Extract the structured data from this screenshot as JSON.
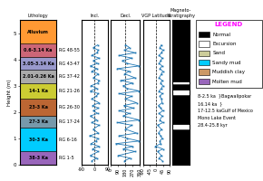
{
  "chart_data": [
    {
      "type": "column",
      "title": "Lithology",
      "y_label": "Height (m)",
      "ylim": [
        0,
        5.5
      ],
      "yticks": [
        0,
        1,
        2,
        3,
        4,
        5
      ],
      "tick_labels": "y",
      "intervals": [
        {
          "bottom": 0.0,
          "top": 0.5,
          "color": "#9966BB",
          "label": "38-3 Ka",
          "sample": "RG 1-5"
        },
        {
          "bottom": 0.5,
          "top": 1.4,
          "color": "#00CCFF",
          "label": "30-3 Ka",
          "sample": "RG 6-16"
        },
        {
          "bottom": 1.4,
          "top": 1.85,
          "color": "#7799AA",
          "label": "27-3 Ka",
          "sample": "RG 17-24"
        },
        {
          "bottom": 1.85,
          "top": 2.5,
          "color": "#BB6633",
          "label": "23-3 Ka",
          "sample": "RG 26-30"
        },
        {
          "bottom": 2.5,
          "top": 3.1,
          "color": "#CCCC33",
          "label": "14-1 Ka",
          "sample": "RG 21-26"
        },
        {
          "bottom": 3.1,
          "top": 3.6,
          "color": "#AAAAAA",
          "label": "2.01-0.26 Ka",
          "sample": "RG 37-42"
        },
        {
          "bottom": 3.6,
          "top": 4.1,
          "color": "#9999CC",
          "label": "3.05-3.14 Ka",
          "sample": "RG 43-47"
        },
        {
          "bottom": 4.1,
          "top": 4.6,
          "color": "#CC6677",
          "label": "0.6-3.14 Ka",
          "sample": "RG 48-55"
        },
        {
          "bottom": 4.6,
          "top": 5.5,
          "color": "#FF9933",
          "label": "Alluvium"
        }
      ]
    },
    {
      "type": "line",
      "title": "Incl.",
      "marker": "square",
      "xlim": [
        -90,
        90
      ],
      "xticks": [
        -90,
        0,
        90
      ],
      "ylim": [
        0,
        5.5
      ],
      "tick_labels": "x",
      "ref_x": 0,
      "y": [
        0.15,
        0.25,
        0.35,
        0.5,
        0.6,
        0.7,
        0.8,
        0.9,
        1.0,
        1.1,
        1.2,
        1.35,
        1.5,
        1.6,
        1.7,
        1.85,
        1.95,
        2.05,
        2.15,
        2.25,
        2.35,
        2.5,
        2.6,
        2.7,
        2.8,
        2.9,
        3.0,
        3.1,
        3.2,
        3.3,
        3.45,
        3.55,
        3.65,
        3.75,
        3.85,
        3.95,
        4.05,
        4.15,
        4.25,
        4.35,
        4.45,
        4.55
      ],
      "x": [
        -20,
        15,
        -30,
        25,
        -15,
        30,
        -25,
        10,
        20,
        -35,
        25,
        -10,
        30,
        -20,
        15,
        -30,
        20,
        -10,
        25,
        -15,
        30,
        -20,
        10,
        25,
        -30,
        15,
        -25,
        20,
        30,
        -10,
        25,
        -20,
        15,
        -30,
        20,
        -10,
        30,
        -20,
        15,
        25,
        -10,
        20
      ]
    },
    {
      "type": "line",
      "title": "Decl.",
      "marker": "square",
      "xlim": [
        0,
        360
      ],
      "xticks": [
        0,
        90,
        180,
        270,
        360
      ],
      "ylim": [
        0,
        5.5
      ],
      "tick_labels": "x",
      "ref_x": 180,
      "y": [
        0.15,
        0.25,
        0.35,
        0.5,
        0.6,
        0.7,
        0.8,
        0.9,
        1.0,
        1.1,
        1.2,
        1.35,
        1.5,
        1.6,
        1.7,
        1.85,
        1.95,
        2.05,
        2.15,
        2.25,
        2.35,
        2.5,
        2.6,
        2.7,
        2.8,
        2.9,
        3.0,
        3.1,
        3.2,
        3.3,
        3.45,
        3.55,
        3.65,
        3.75,
        3.85,
        3.95,
        4.05,
        4.15,
        4.25,
        4.35,
        4.45,
        4.55
      ],
      "x": [
        170,
        240,
        90,
        300,
        150,
        270,
        60,
        350,
        200,
        100,
        320,
        180,
        260,
        80,
        350,
        150,
        230,
        100,
        280,
        160,
        320,
        180,
        260,
        100,
        350,
        200,
        150,
        270,
        120,
        300,
        170,
        230,
        80,
        350,
        200,
        140,
        260,
        100,
        300,
        170,
        230,
        180
      ]
    },
    {
      "type": "line",
      "title": "VGP Latitude",
      "marker": "square",
      "xlim": [
        -90,
        90
      ],
      "xticks": [
        -90,
        -45,
        0,
        45,
        90
      ],
      "ylim": [
        0,
        5.5
      ],
      "tick_labels": "x",
      "ref_x": 0,
      "y": [
        0.15,
        0.25,
        0.35,
        0.5,
        0.6,
        0.7,
        0.8,
        0.9,
        1.0,
        1.1,
        1.2,
        1.35,
        1.5,
        1.6,
        1.7,
        1.85,
        1.95,
        2.05,
        2.15,
        2.25,
        2.35,
        2.5,
        2.6,
        2.7,
        2.8,
        2.9,
        3.0,
        3.1,
        3.2,
        3.3,
        3.45,
        3.55,
        3.65,
        3.75,
        3.85,
        3.95,
        4.05,
        4.15,
        4.25,
        4.35,
        4.45,
        4.55
      ],
      "x": [
        40,
        20,
        35,
        10,
        45,
        -5,
        30,
        25,
        40,
        30,
        15,
        35,
        10,
        45,
        25,
        40,
        20,
        45,
        30,
        15,
        40,
        35,
        25,
        40,
        20,
        35,
        45,
        30,
        40,
        20,
        35,
        45,
        25,
        40,
        20,
        30,
        40,
        20,
        35,
        45,
        25,
        35
      ]
    },
    {
      "type": "column",
      "title": "Magneto-\nStratigraphy",
      "ylim": [
        0,
        5.5
      ],
      "tick_labels": false,
      "intervals": [
        {
          "bottom": 0.0,
          "top": 1.35,
          "color": "black"
        },
        {
          "bottom": 1.35,
          "top": 1.55,
          "color": "white"
        },
        {
          "bottom": 1.55,
          "top": 2.65,
          "color": "black"
        },
        {
          "bottom": 2.65,
          "top": 2.85,
          "color": "white"
        },
        {
          "bottom": 2.85,
          "top": 3.05,
          "color": "black"
        },
        {
          "bottom": 3.05,
          "top": 3.15,
          "color": "white"
        },
        {
          "bottom": 3.15,
          "top": 5.5,
          "color": "black"
        }
      ]
    },
    {
      "type": "legend_panel",
      "title": "LEGEND",
      "color": "magenta",
      "series": [
        {
          "name": "Normal",
          "color": "#000000"
        },
        {
          "name": "Excursion",
          "color": "#ffffff"
        },
        {
          "name": "Sand",
          "color": "#CCCC99"
        },
        {
          "name": "Sandy mud",
          "color": "#00CCFF"
        },
        {
          "name": "Muddish clay",
          "color": "#CC9966"
        },
        {
          "name": "Molten mud",
          "color": "#9966BB"
        }
      ],
      "annotations": [
        "8-2.5 ka  }Bagwalipokar",
        "16.14 ka  }",
        "17-12.5 kaGulf of Mexico",
        "Mono Lake Event",
        "28.4-25.8 kyr"
      ]
    }
  ]
}
